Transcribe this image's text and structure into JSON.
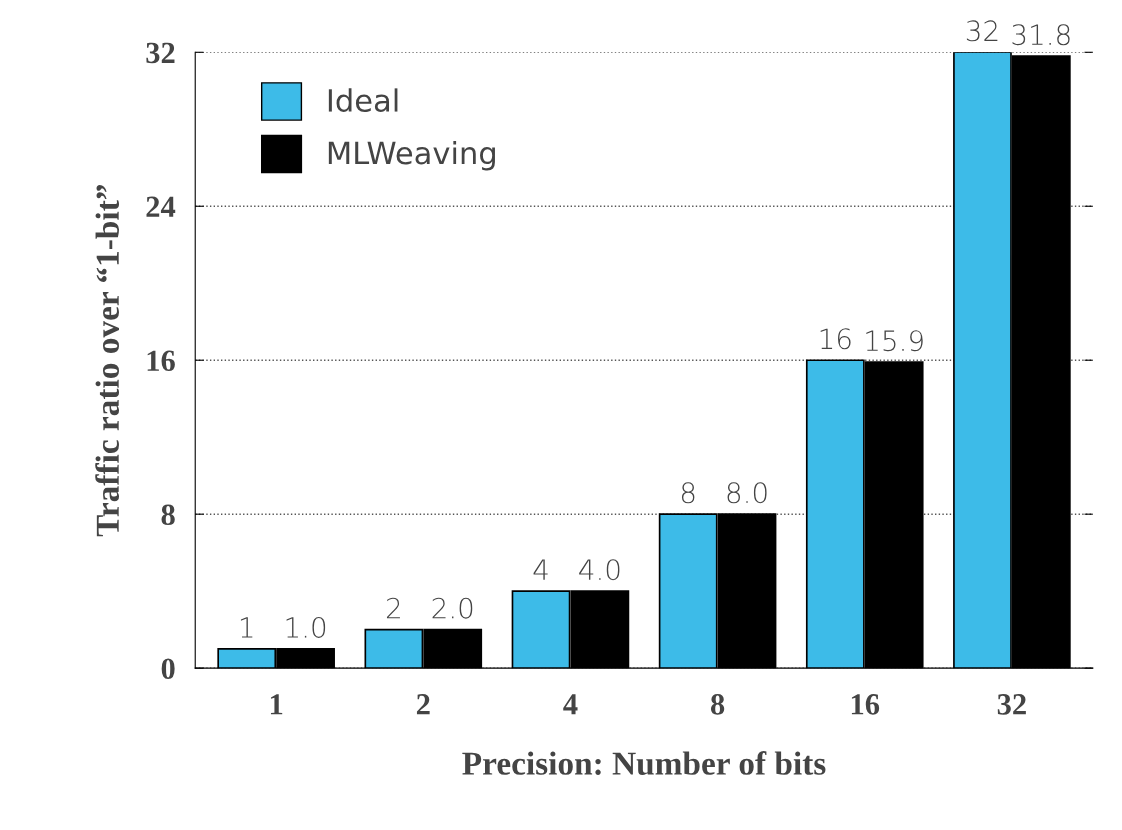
{
  "chart_data": {
    "type": "bar",
    "xlabel": "Precision: Number of bits",
    "ylabel": "Traffic ratio over “1-bit”",
    "categories": [
      "1",
      "2",
      "4",
      "8",
      "16",
      "32"
    ],
    "series": [
      {
        "name": "Ideal",
        "color": "#3dbbe8",
        "values": [
          1,
          2,
          4,
          8,
          16,
          32
        ],
        "value_labels": [
          "1",
          "2",
          "4",
          "8",
          "16",
          "32"
        ]
      },
      {
        "name": "MLWeaving",
        "color": "#000000",
        "values": [
          1.0,
          2.0,
          4.0,
          8.0,
          15.9,
          31.8
        ],
        "value_labels": [
          "1.0",
          "2.0",
          "4.0",
          "8.0",
          "15.9",
          "31.8"
        ]
      }
    ],
    "ylim": [
      0,
      32
    ],
    "yticks": [
      0,
      8,
      16,
      24,
      32
    ],
    "grid": "y",
    "legend": "top left"
  }
}
